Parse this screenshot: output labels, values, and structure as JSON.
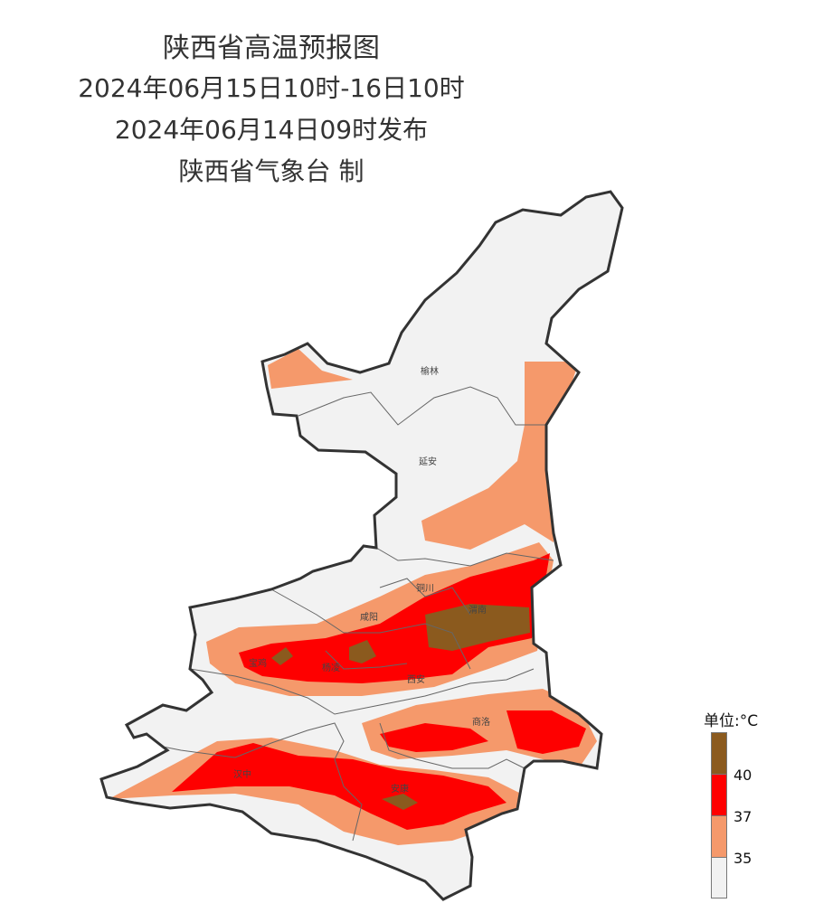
{
  "header": {
    "title": "陕西省高温预报图",
    "period": "2024年06月15日10时-16日10时",
    "issued": "2024年06月14日09时发布",
    "producer": "陕西省气象台 制"
  },
  "cities": [
    "榆林",
    "延安",
    "铜川",
    "渭南",
    "咸阳",
    "宝鸡",
    "杨凌",
    "西安",
    "商洛",
    "汉中",
    "安康"
  ],
  "legend": {
    "title": "单位:°C",
    "levels": [
      {
        "label": "40",
        "color": "#8b5a1e"
      },
      {
        "label": "37",
        "color": "#fe0000"
      },
      {
        "label": "35",
        "color": "#f5996b"
      },
      {
        "label": "",
        "color": "#f2f2f2"
      }
    ]
  }
}
